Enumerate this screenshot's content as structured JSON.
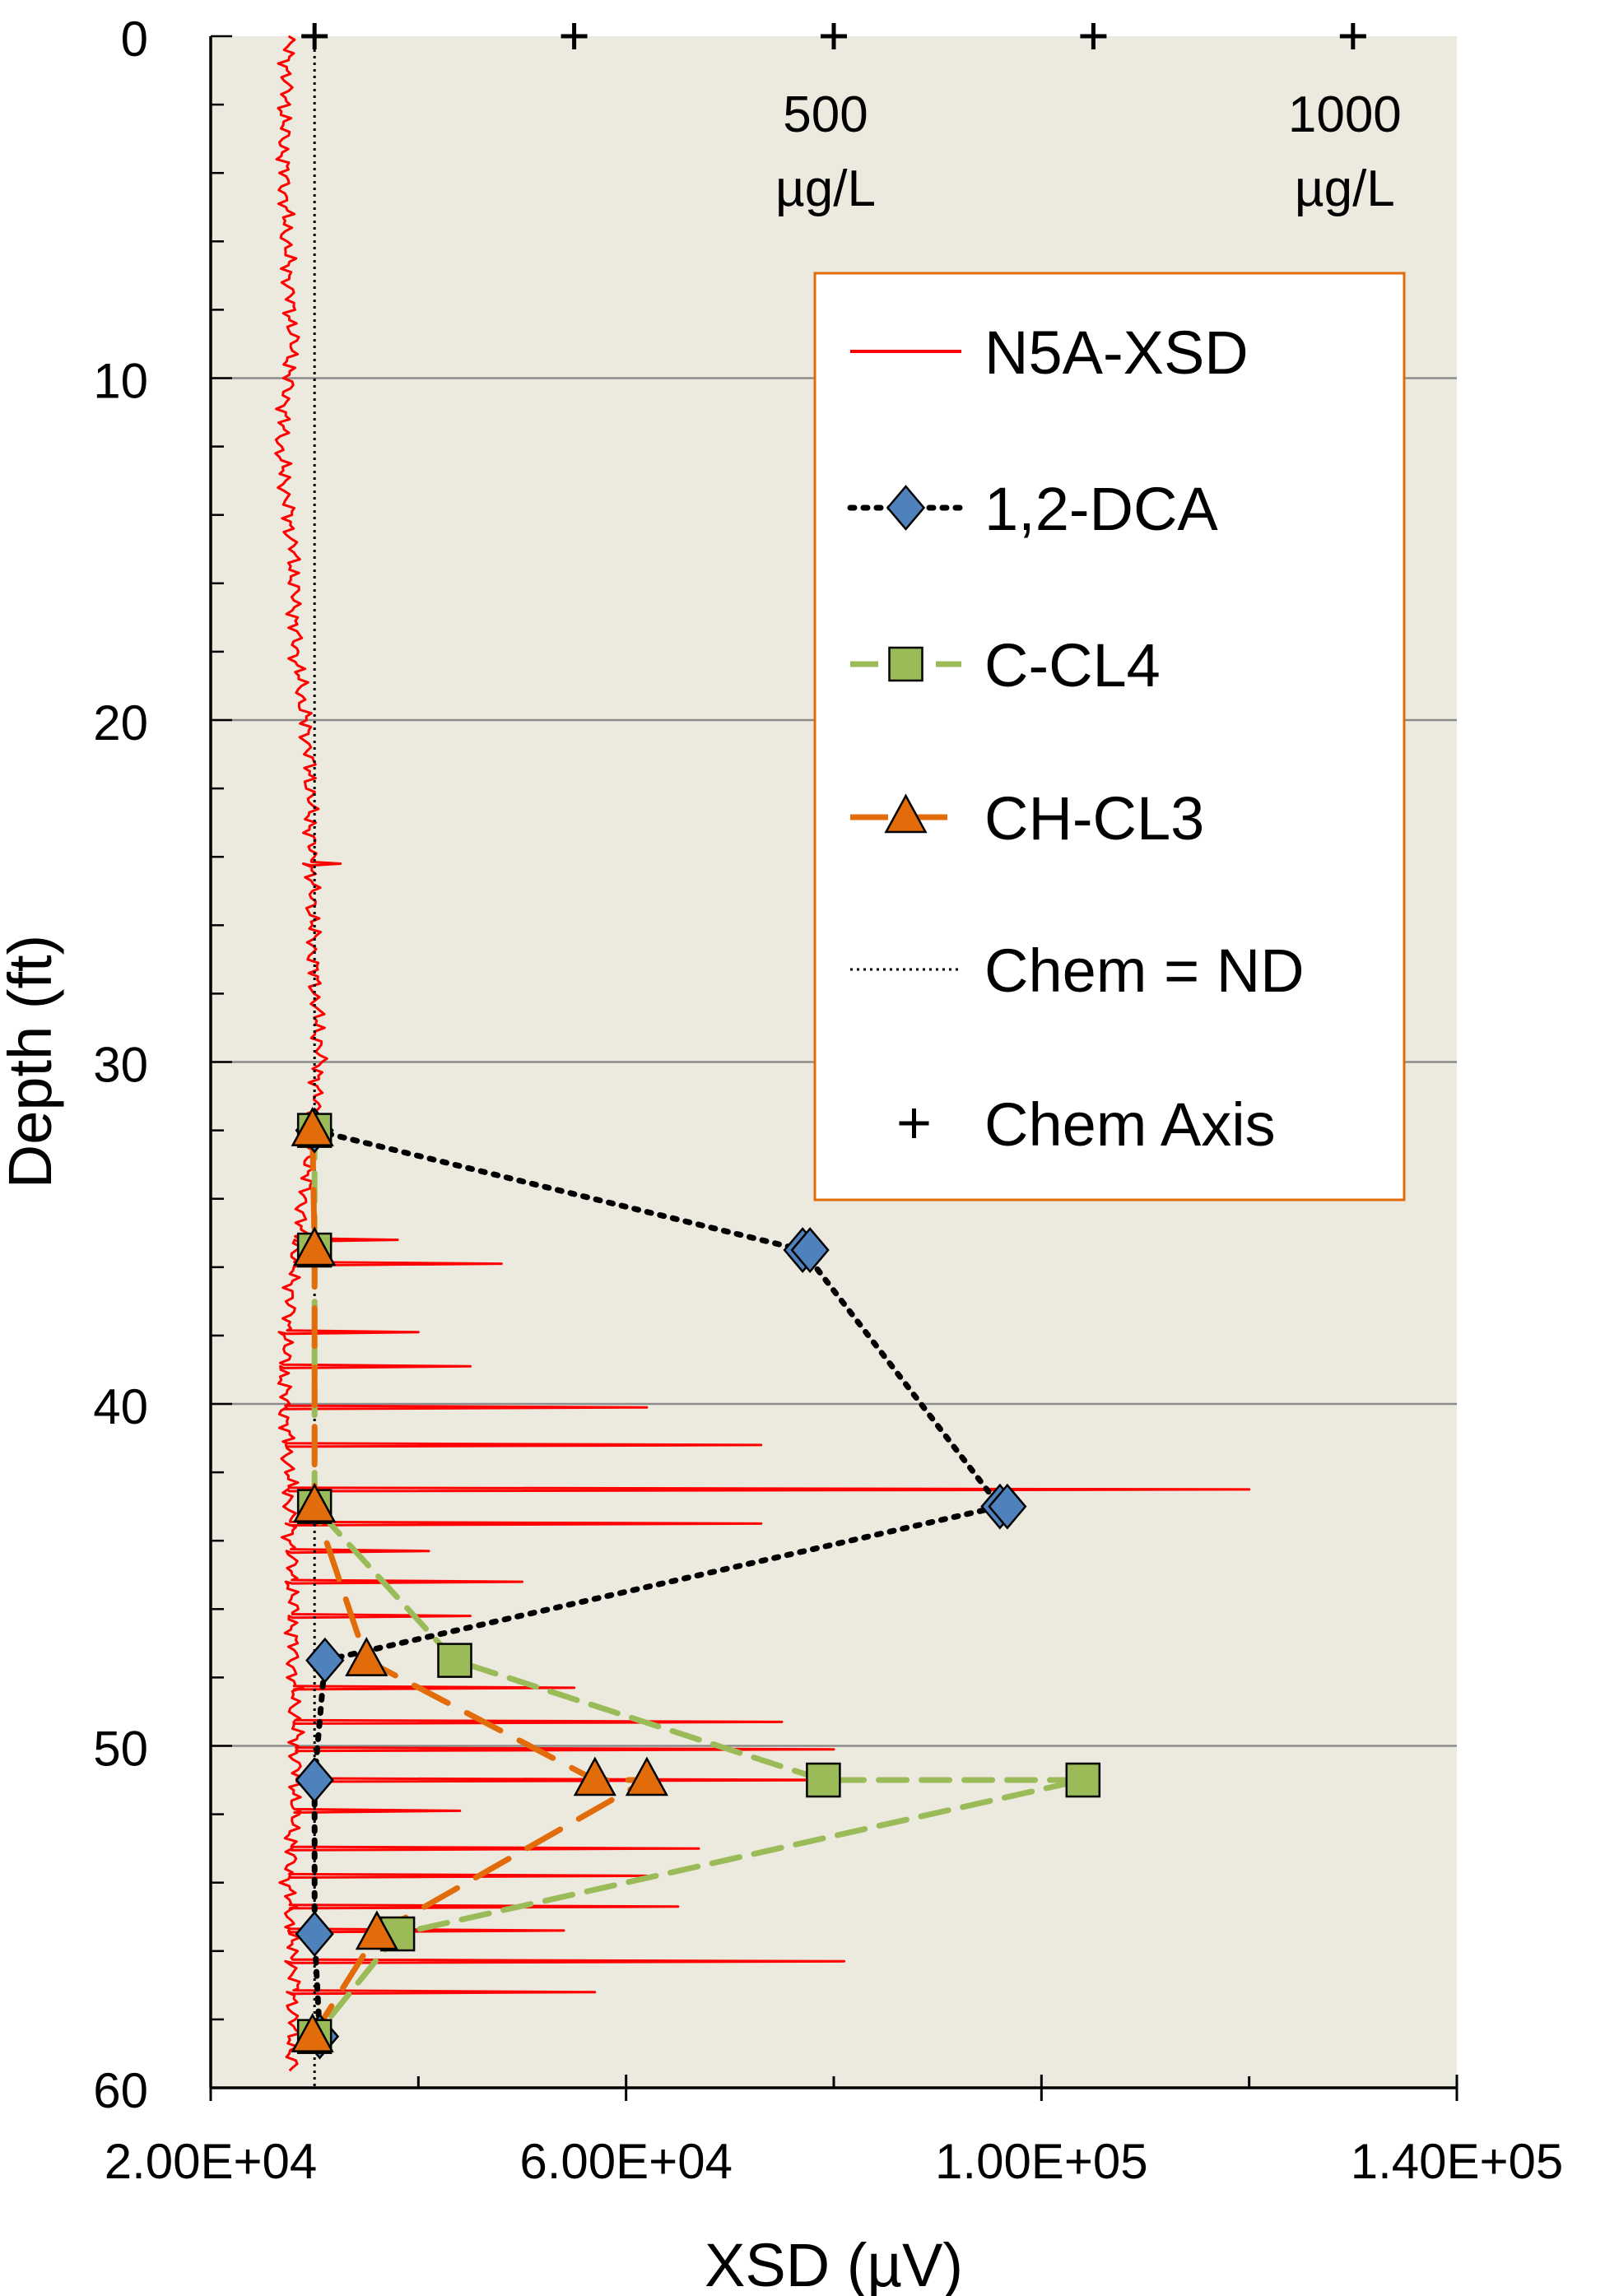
{
  "chart_data": {
    "type": "line",
    "title": "",
    "xlabel": "XSD (µV)",
    "ylabel": "Depth (ft)",
    "x_axis": {
      "min": 20000,
      "max": 140000,
      "ticks": [
        20000,
        60000,
        100000,
        140000
      ],
      "tick_labels": [
        "2.00E+04",
        "6.00E+04",
        "1.00E+05",
        "1.40E+05"
      ]
    },
    "y_axis": {
      "min": 0,
      "max": 60,
      "inverted": true,
      "ticks": [
        0,
        10,
        20,
        30,
        40,
        50,
        60
      ],
      "tick_labels": [
        "0",
        "10",
        "20",
        "30",
        "40",
        "50",
        "60"
      ],
      "gridlines": [
        10,
        20,
        30,
        40,
        50
      ]
    },
    "chem_axis": {
      "name": "Chem Axis",
      "ticks_ugL": [
        0,
        250,
        500,
        750,
        1000
      ],
      "x_positions": [
        30000,
        55000,
        80000,
        105000,
        130000
      ],
      "labels": [
        {
          "value": "500",
          "unit": "µg/L",
          "x": 80000
        },
        {
          "value": "1000",
          "unit": "µg/L",
          "x": 130000
        }
      ]
    },
    "series": [
      {
        "name": "N5A-XSD",
        "color": "#ff0000",
        "style": "solid",
        "baseline_x": [
          27500,
          27000,
          27300,
          27900,
          26700,
          27900,
          28200,
          29500,
          29700,
          29900,
          30500,
          29500,
          28000,
          27000,
          27500,
          27800,
          28000,
          28300,
          27500,
          28000,
          27800
        ],
        "baseline_depth": [
          0,
          3,
          6,
          9,
          12,
          15,
          18,
          21,
          24,
          27,
          30,
          33,
          36,
          39,
          42,
          45,
          48,
          51,
          54,
          57,
          59.5
        ],
        "spikes": [
          {
            "depth": 24.2,
            "x": 32500
          },
          {
            "depth": 35.2,
            "x": 38000
          },
          {
            "depth": 35.9,
            "x": 48000
          },
          {
            "depth": 37.9,
            "x": 40000
          },
          {
            "depth": 38.9,
            "x": 45000
          },
          {
            "depth": 40.1,
            "x": 62000
          },
          {
            "depth": 41.2,
            "x": 73000
          },
          {
            "depth": 42.5,
            "x": 120000
          },
          {
            "depth": 43.5,
            "x": 73000
          },
          {
            "depth": 44.3,
            "x": 41000
          },
          {
            "depth": 45.2,
            "x": 50000
          },
          {
            "depth": 46.2,
            "x": 45000
          },
          {
            "depth": 48.3,
            "x": 55000
          },
          {
            "depth": 49.3,
            "x": 75000
          },
          {
            "depth": 50.1,
            "x": 80000
          },
          {
            "depth": 51.0,
            "x": 82000
          },
          {
            "depth": 51.9,
            "x": 44000
          },
          {
            "depth": 53.0,
            "x": 67000
          },
          {
            "depth": 53.8,
            "x": 62000
          },
          {
            "depth": 54.7,
            "x": 65000
          },
          {
            "depth": 55.4,
            "x": 54000
          },
          {
            "depth": 56.3,
            "x": 81000
          },
          {
            "depth": 57.2,
            "x": 57000
          }
        ]
      },
      {
        "name": "1,2-DCA",
        "color": "#4f81bd",
        "style": "dotted",
        "marker": "diamond",
        "points": [
          {
            "depth": 32,
            "x": 30000
          },
          {
            "depth": 35.5,
            "x": 77000
          },
          {
            "depth": 43,
            "x": 96000
          },
          {
            "depth": 47.5,
            "x": 31000
          },
          {
            "depth": 51,
            "x": 30000
          },
          {
            "depth": 55.5,
            "x": 30000
          },
          {
            "depth": 58.5,
            "x": 30500
          }
        ]
      },
      {
        "name": "C-CL4",
        "color": "#9bbb59",
        "style": "dashed",
        "marker": "square",
        "points": [
          {
            "depth": 32,
            "x": 30000
          },
          {
            "depth": 35.5,
            "x": 30000
          },
          {
            "depth": 43,
            "x": 30000
          },
          {
            "depth": 47.5,
            "x": 43500
          },
          {
            "depth": 51,
            "x": 79000
          },
          {
            "depth": 51,
            "x": 104000
          },
          {
            "depth": 55.5,
            "x": 38000
          },
          {
            "depth": 58.5,
            "x": 30000
          }
        ]
      },
      {
        "name": "CH-CL3",
        "color": "#e36c0a",
        "style": "dashed",
        "marker": "triangle",
        "points": [
          {
            "depth": 32,
            "x": 29800
          },
          {
            "depth": 35.5,
            "x": 30000
          },
          {
            "depth": 43,
            "x": 30000
          },
          {
            "depth": 47.5,
            "x": 35000
          },
          {
            "depth": 51,
            "x": 57000
          },
          {
            "depth": 51,
            "x": 62000
          },
          {
            "depth": 55.5,
            "x": 36000
          },
          {
            "depth": 58.5,
            "x": 29800
          }
        ]
      },
      {
        "name": "Chem = ND",
        "color": "#000000",
        "style": "dotted-fine",
        "x": 30000,
        "depth_range": [
          0,
          60
        ]
      }
    ],
    "legend": {
      "position": "top-right",
      "entries": [
        "N5A-XSD",
        "1,2-DCA",
        "C-CL4",
        "CH-CL3",
        "Chem = ND",
        "Chem Axis"
      ]
    },
    "colors": {
      "plot_background": "#ece9df",
      "gridline": "#8c8c8c",
      "legend_border": "#e36c0a"
    }
  }
}
